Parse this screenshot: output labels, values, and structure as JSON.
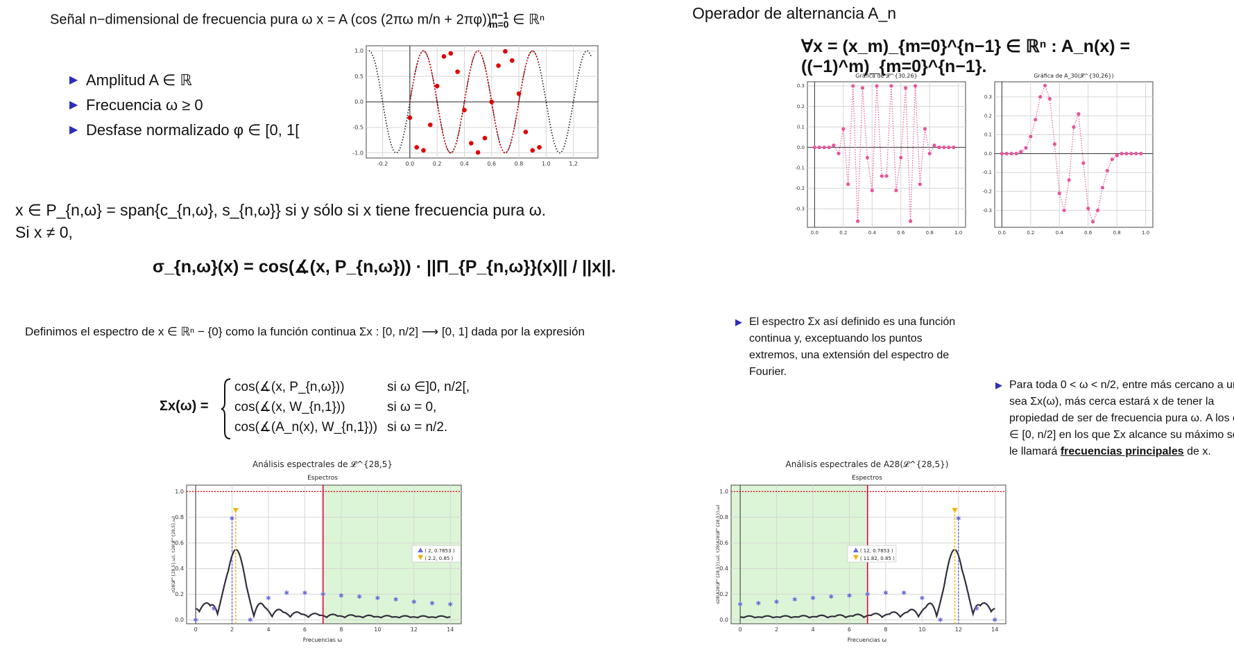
{
  "left": {
    "signal": {
      "text": "Señal n−dimensional de frecuencia pura ω x = A (cos (2πω m/n + 2πφ))",
      "super": "n−1",
      "sub": "m=0",
      "end": "∈ ℝⁿ"
    },
    "bullets": [
      "Amplitud A ∈ ℝ",
      "Frecuencia ω ≥ 0",
      "Desfase normalizado φ ∈ [0, 1["
    ],
    "pure_line1": "x ∈ P_{n,ω} = span{c_{n,ω}, s_{n,ω}} si y sólo si  x tiene frecuencia pura ω.",
    "pure_line2": "Si x ≠ 0,",
    "sigma_formula": "σ_{n,ω}(x) = cos(∡(x, P_{n,ω})) · ||Π_{P_{n,ω}}(x)|| / ||x||.",
    "spectrum_def": "Definimos el espectro de x ∈ ℝⁿ − {0} como la función continua Σx : [0, n/2] ⟶ [0, 1] dada por la expresión",
    "cases_lhs": "Σx(ω) =",
    "cases": [
      {
        "expr": "cos(∡(x, P_{n,ω}))",
        "cond": "si ω ∈]0, n/2[,"
      },
      {
        "expr": "cos(∡(x, W_{n,1}))",
        "cond": "si ω = 0,"
      },
      {
        "expr": "cos(∡(A_n(x), W_{n,1}))",
        "cond": "si ω = n/2."
      }
    ]
  },
  "right": {
    "op_title": "Operador de alternancia A_n",
    "op_formula": "∀x = (x_m)_{m=0}^{n−1} ∈ ℝⁿ :  A_n(x) = ((−1)^m)_{m=0}^{n−1}.",
    "bullet1": "El espectro Σx así definido es una función continua y, exceptuando los puntos extremos, una extensión del espectro de Fourier.",
    "bullet2_a": "Para toda 0 < ω < n/2, entre más cercano a uno sea Σx(ω), más cerca estará x de tener la propiedad de ser de frecuencia pura ω. A los ω ∈ [0, n/2] en los que Σx alcance su máximo se le llamará ",
    "bullet2_b": "frecuencias principales",
    "bullet2_c": " de x."
  },
  "colors": {
    "accent_blue": "#2c2cb8",
    "red": "#e00000",
    "pink": "#e8559b",
    "green_fill": "#dcf5d6",
    "gold": "#f0b400"
  },
  "chart_data": [
    {
      "type": "scatter",
      "title": "",
      "xticks": [
        "-0.2",
        "0.0",
        "0.2",
        "0.4",
        "0.6",
        "0.8",
        "1.0",
        "1.2"
      ],
      "yticks": [
        "1.0",
        "0.5",
        "0.0",
        "-0.5",
        "-1.0"
      ],
      "xlim": [
        -0.32,
        1.38
      ],
      "ylim": [
        -1.1,
        1.1
      ],
      "curve": {
        "amplitude": 1,
        "frequency": 2.5,
        "phase": 0.75
      },
      "sample_count": 20,
      "points": [
        [
          0.0,
          -0.31
        ],
        [
          0.05,
          -0.89
        ],
        [
          0.1,
          -0.95
        ],
        [
          0.15,
          -0.45
        ],
        [
          0.2,
          0.31
        ],
        [
          0.25,
          0.89
        ],
        [
          0.3,
          0.95
        ],
        [
          0.35,
          0.59
        ],
        [
          0.4,
          -0.16
        ],
        [
          0.45,
          -0.81
        ],
        [
          0.5,
          -0.99
        ],
        [
          0.55,
          -0.71
        ],
        [
          0.6,
          0.0
        ],
        [
          0.65,
          0.71
        ],
        [
          0.7,
          0.99
        ],
        [
          0.75,
          0.81
        ],
        [
          0.8,
          0.16
        ],
        [
          0.85,
          -0.59
        ],
        [
          0.9,
          -0.95
        ],
        [
          0.95,
          -0.89
        ]
      ]
    },
    {
      "type": "line",
      "title": "Gráfica de 𝓛^{30,26}",
      "xticks": [
        "0.0",
        "0.2",
        "0.4",
        "0.6",
        "0.8",
        "1.0"
      ],
      "yticks": [
        "0.3",
        "0.2",
        "0.1",
        "0.0",
        "-0.1",
        "-0.2",
        "-0.3"
      ],
      "xlim": [
        -0.05,
        1.05
      ],
      "ylim": [
        -0.39,
        0.32
      ],
      "points": [
        [
          0.0,
          0.0
        ],
        [
          0.033,
          0.0
        ],
        [
          0.067,
          0.0
        ],
        [
          0.1,
          0.0
        ],
        [
          0.133,
          0.01
        ],
        [
          0.167,
          -0.03
        ],
        [
          0.2,
          0.09
        ],
        [
          0.233,
          -0.18
        ],
        [
          0.267,
          0.3
        ],
        [
          0.3,
          -0.36
        ],
        [
          0.333,
          0.29
        ],
        [
          0.367,
          -0.05
        ],
        [
          0.4,
          -0.21
        ],
        [
          0.433,
          0.3
        ],
        [
          0.467,
          -0.14
        ],
        [
          0.5,
          -0.14
        ],
        [
          0.533,
          0.3
        ],
        [
          0.567,
          -0.21
        ],
        [
          0.6,
          -0.05
        ],
        [
          0.633,
          0.29
        ],
        [
          0.667,
          -0.36
        ],
        [
          0.7,
          0.3
        ],
        [
          0.733,
          -0.18
        ],
        [
          0.767,
          0.09
        ],
        [
          0.8,
          -0.03
        ],
        [
          0.833,
          0.01
        ],
        [
          0.867,
          0.0
        ],
        [
          0.9,
          0.0
        ],
        [
          0.933,
          0.0
        ],
        [
          0.967,
          0.0
        ]
      ]
    },
    {
      "type": "line",
      "title": "Gráfica de A_30(𝓛^{30,26})",
      "xticks": [
        "0.0",
        "0.2",
        "0.4",
        "0.6",
        "0.8",
        "1.0"
      ],
      "yticks": [
        "0.3",
        "0.2",
        "0.1",
        "0.0",
        "-0.1",
        "-0.2",
        "-0.3"
      ],
      "xlim": [
        -0.05,
        1.05
      ],
      "ylim": [
        -0.39,
        0.38
      ],
      "points": [
        [
          0.0,
          0.0
        ],
        [
          0.033,
          0.0
        ],
        [
          0.067,
          0.0
        ],
        [
          0.1,
          0.0
        ],
        [
          0.133,
          0.01
        ],
        [
          0.167,
          0.03
        ],
        [
          0.2,
          0.09
        ],
        [
          0.233,
          0.18
        ],
        [
          0.267,
          0.3
        ],
        [
          0.3,
          0.36
        ],
        [
          0.333,
          0.29
        ],
        [
          0.367,
          0.05
        ],
        [
          0.4,
          -0.21
        ],
        [
          0.433,
          -0.3
        ],
        [
          0.467,
          -0.14
        ],
        [
          0.5,
          0.14
        ],
        [
          0.533,
          0.21
        ],
        [
          0.567,
          -0.05
        ],
        [
          0.6,
          -0.29
        ],
        [
          0.633,
          -0.36
        ],
        [
          0.667,
          -0.3
        ],
        [
          0.7,
          -0.18
        ],
        [
          0.733,
          -0.09
        ],
        [
          0.767,
          -0.03
        ],
        [
          0.8,
          -0.01
        ],
        [
          0.833,
          0.0
        ],
        [
          0.867,
          0.0
        ],
        [
          0.9,
          0.0
        ],
        [
          0.933,
          0.0
        ],
        [
          0.967,
          0.0
        ]
      ]
    },
    {
      "type": "line",
      "title": "Análisis espectrales de 𝓛^{28,5}",
      "subtitle": "Espectros",
      "xlabel": "Frecuencias ω",
      "ylabel": "σ28(𝓛^{28,5},ω), τ28(𝓛^{28,5},ω)",
      "xticks": [
        "0",
        "2",
        "4",
        "6",
        "8",
        "10",
        "12",
        "14"
      ],
      "yticks": [
        "1.0",
        "0.8",
        "0.6",
        "0.4",
        "0.2",
        "0.0"
      ],
      "xlim": [
        -0.5,
        14.6
      ],
      "ylim": [
        -0.03,
        1.05
      ],
      "mirror": false,
      "hline": 1.0,
      "vline": 7,
      "green_region": [
        7,
        14.6
      ],
      "markers": [
        [
          0,
          0.0
        ],
        [
          1,
          0.09
        ],
        [
          2,
          0.79
        ],
        [
          3,
          0.0
        ],
        [
          4,
          0.17
        ],
        [
          5,
          0.21
        ],
        [
          6,
          0.21
        ],
        [
          7,
          0.2
        ],
        [
          8,
          0.19
        ],
        [
          9,
          0.18
        ],
        [
          10,
          0.17
        ],
        [
          11,
          0.16
        ],
        [
          12,
          0.14
        ],
        [
          13,
          0.13
        ],
        [
          14,
          0.12
        ]
      ],
      "peak": [
        2.2,
        0.85
      ],
      "legend": [
        "( 2, 0.7853 )",
        "( 2.2, 0.85 )"
      ],
      "legend_position": "right"
    },
    {
      "type": "line",
      "title": "Análisis espectrales de A28(𝓛^{28,5})",
      "subtitle": "Espectros",
      "xlabel": "Frecuencias ω",
      "ylabel": "σ28(A28(𝓛^{28,5}),ω), τ28(A28(𝓛^{28,5}),ω)",
      "xticks": [
        "0",
        "2",
        "4",
        "6",
        "8",
        "10",
        "12",
        "14"
      ],
      "yticks": [
        "1.0",
        "0.8",
        "0.6",
        "0.4",
        "0.2",
        "0.0"
      ],
      "xlim": [
        -0.5,
        14.6
      ],
      "ylim": [
        -0.03,
        1.05
      ],
      "mirror": true,
      "hline": 1.0,
      "vline": 7,
      "green_region": [
        -0.5,
        7
      ],
      "markers": [
        [
          0,
          0.12
        ],
        [
          1,
          0.13
        ],
        [
          2,
          0.14
        ],
        [
          3,
          0.16
        ],
        [
          4,
          0.17
        ],
        [
          5,
          0.18
        ],
        [
          6,
          0.19
        ],
        [
          7,
          0.2
        ],
        [
          8,
          0.21
        ],
        [
          9,
          0.21
        ],
        [
          10,
          0.17
        ],
        [
          11,
          0.0
        ],
        [
          12,
          0.79
        ],
        [
          13,
          0.09
        ],
        [
          14,
          0.0
        ]
      ],
      "peak": [
        11.8,
        0.85
      ],
      "legend": [
        "( 12, 0.7853 )",
        "( 11.82, 0.85 )"
      ],
      "legend_position": "center"
    }
  ]
}
